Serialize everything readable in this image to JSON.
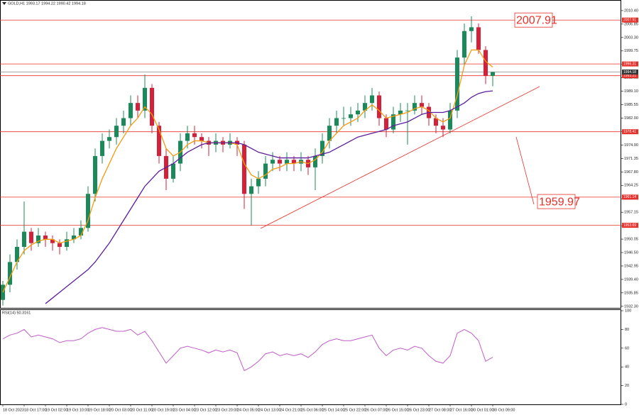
{
  "chart_data": {
    "type": "candlestick",
    "title": "GOLD,H1 1993.17 1994.22 1990.42 1994.18",
    "up_color": "#1b8a5a",
    "down_color": "#d6203a",
    "level_color": "#e8302a",
    "categories": [
      "18 Oct 2023",
      null,
      null,
      "18 Oct 17:00",
      null,
      null,
      "19 Oct 02:00",
      null,
      null,
      "19 Oct 10:00",
      null,
      null,
      "19 Oct 18:00",
      null,
      null,
      "20 Oct 03:00",
      null,
      null,
      "20 Oct 11:00",
      null,
      null,
      "20 Oct 19:00",
      null,
      null,
      "23 Oct 04:00",
      null,
      null,
      "23 Oct 12:00",
      null,
      null,
      "23 Oct 20:00",
      null,
      null,
      "24 Oct 05:00",
      null,
      null,
      "24 Oct 13:00",
      null,
      null,
      "24 Oct 21:00",
      null,
      null,
      "25 Oct 06:00",
      null,
      null,
      "25 Oct 14:00",
      null,
      null,
      "25 Oct 22:00",
      null,
      null,
      "26 Oct 07:00",
      null,
      null,
      "26 Oct 15:00",
      null,
      null,
      "26 Oct 23:00",
      null,
      null,
      "27 Oct 08:00",
      null,
      null,
      "27 Oct 16:00",
      null,
      null,
      "30 Oct 01:00",
      null,
      null,
      "30 Oct 09:00"
    ],
    "open": [
      1934,
      1938,
      1944,
      1948,
      1952,
      1949,
      1951,
      1950,
      1949,
      1948,
      1950,
      1951,
      1953,
      1962,
      1972,
      1976,
      1977,
      1980,
      1982,
      1986,
      1984,
      1990,
      1980,
      1972,
      1966,
      1970,
      1976,
      1978,
      1977,
      1976,
      1975,
      1976,
      1975,
      1976,
      1975,
      1962,
      1964,
      1966,
      1970,
      1971,
      1970,
      1971,
      1970,
      1971,
      1969,
      1972,
      1976,
      1980,
      1982,
      1982,
      1983,
      1984,
      1986,
      1988,
      1982,
      1979,
      1983,
      1984,
      1984,
      1986,
      1985,
      1982,
      1980,
      1979,
      1984,
      1998,
      2005,
      2006,
      2000,
      1993.17
    ],
    "high": [
      1939,
      1946,
      1950,
      1960,
      1953,
      1953,
      1952,
      1951,
      1950,
      1952,
      1953,
      1955,
      1964,
      1974,
      1978,
      1979,
      1982,
      1984,
      1988,
      1988,
      1993.5,
      1991,
      1981,
      1974,
      1972,
      1978,
      1980,
      1980,
      1978,
      1977,
      1978,
      1977,
      1978,
      1977,
      1976,
      1966,
      1968,
      1972,
      1973,
      1972,
      1973,
      1972,
      1973,
      1972,
      1974,
      1978,
      1982,
      1984,
      1985,
      1985,
      1986,
      1988,
      1990,
      1989,
      1983,
      1985,
      1986,
      1986,
      1988,
      1988,
      1986,
      1983,
      1982,
      1986,
      2000,
      2007,
      2008.9,
      2007,
      2001,
      1994.22
    ],
    "low": [
      1932.5,
      1936,
      1942,
      1946,
      1947,
      1948,
      1948,
      1947,
      1946,
      1947,
      1949,
      1950,
      1952,
      1960,
      1970,
      1974,
      1975,
      1978,
      1980,
      1982,
      1982,
      1978,
      1970,
      1963,
      1965,
      1968,
      1974,
      1975,
      1974,
      1972,
      1973,
      1973,
      1974,
      1972,
      1958,
      1953.69,
      1962,
      1964,
      1968,
      1968,
      1968,
      1968,
      1968,
      1967,
      1963,
      1970,
      1974,
      1978,
      1980,
      1980,
      1981,
      1982,
      1984,
      1980,
      1977,
      1978,
      1981,
      1975,
      1983,
      1983,
      1980,
      1978,
      1977,
      1978,
      1982,
      1996,
      2002,
      1999,
      1991,
      1990.42
    ],
    "close": [
      1938,
      1944,
      1948,
      1952,
      1949,
      1951,
      1950,
      1949,
      1948,
      1950,
      1951,
      1953,
      1962,
      1972,
      1976,
      1977,
      1980,
      1982,
      1986,
      1984,
      1990,
      1980,
      1972,
      1966,
      1970,
      1976,
      1978,
      1977,
      1976,
      1975,
      1976,
      1975,
      1976,
      1975,
      1962,
      1964,
      1966,
      1970,
      1971,
      1970,
      1971,
      1970,
      1971,
      1969,
      1972,
      1976,
      1980,
      1982,
      1982,
      1983,
      1984,
      1986,
      1988,
      1982,
      1979,
      1983,
      1984,
      1984,
      1986,
      1985,
      1982,
      1980,
      1979,
      1984,
      1998,
      2005,
      2006,
      2000,
      1993.17,
      1994.18
    ],
    "ma": [
      {
        "color": "#f39c12",
        "values": [
          1936,
          1940,
          1944,
          1947,
          1948.5,
          1949.5,
          1950,
          1950,
          1949,
          1949.5,
          1950,
          1951,
          1955,
          1961,
          1966,
          1970,
          1974,
          1977,
          1980,
          1982,
          1985,
          1983,
          1979,
          1974,
          1972,
          1973,
          1975,
          1976,
          1976,
          1975.5,
          1975.5,
          1975.5,
          1975.5,
          1975,
          1970,
          1967,
          1966,
          1967,
          1968.5,
          1969,
          1970,
          1970,
          1970.5,
          1970,
          1971,
          1973,
          1976,
          1978,
          1980,
          1981,
          1982,
          1984,
          1985.5,
          1984,
          1982,
          1982.5,
          1983,
          1983.5,
          1984.5,
          1985,
          1984,
          1982,
          1981,
          1982,
          1988,
          1996,
          2000,
          2000,
          1997,
          1995.5
        ]
      },
      {
        "color": "#5b1d9c",
        "values": [
          null,
          null,
          null,
          null,
          null,
          null,
          1933,
          1934.5,
          1936,
          1937.5,
          1939,
          1940.5,
          1942,
          1944,
          1946.5,
          1949,
          1952,
          1955,
          1958,
          1961,
          1964,
          1966,
          1968,
          1969,
          1970,
          1971.5,
          1973,
          1974,
          1975,
          1975.5,
          1975.5,
          1975.5,
          1975.5,
          1975.5,
          1975,
          1974,
          1973,
          1972.5,
          1972,
          1971.5,
          1971.5,
          1971.5,
          1971.5,
          1971.5,
          1972,
          1972.5,
          1973,
          1974,
          1975,
          1976,
          1977,
          1977.5,
          1978,
          1978.5,
          1979,
          1980,
          1980.5,
          1981,
          1982,
          1983,
          1983.5,
          1983.5,
          1983.5,
          1984,
          1985,
          1986,
          1987.5,
          1988.5,
          1989,
          1989.2
        ]
      }
    ],
    "levels": [
      {
        "value": 2007.91,
        "label": "2007.91"
      },
      {
        "value": 1996.31,
        "label": "1996.31"
      },
      {
        "value": 1993.21,
        "label": "1993.21"
      },
      {
        "value": 1978.41,
        "label": "1978.41"
      },
      {
        "value": 1961.14,
        "label": "1961.14"
      },
      {
        "value": 1953.69,
        "label": "1953.69"
      }
    ],
    "current_price": {
      "value": 1994.18,
      "label": "1994.18"
    },
    "annotations": [
      {
        "value": 2007.91,
        "label": "2007.91"
      },
      {
        "value": 1959.97,
        "label": "1959.97"
      }
    ],
    "ylim": [
      1931.7,
      2013.2
    ],
    "yticks": [
      {
        "value": 2010.4,
        "label": "2010.40"
      },
      {
        "value": 2006.85,
        "label": "2006.85"
      },
      {
        "value": 2003.3,
        "label": "2003.30"
      },
      {
        "value": 1999.75,
        "label": "1999.75"
      },
      {
        "value": 1996.2,
        "label": "1996.20"
      },
      {
        "value": 1992.65,
        "label": "1992.65"
      },
      {
        "value": 1989.1,
        "label": "1989.10"
      },
      {
        "value": 1985.55,
        "label": "1985.55"
      },
      {
        "value": 1982,
        "label": "1982.00"
      },
      {
        "value": 1978.45,
        "label": "1978.45"
      },
      {
        "value": 1974.9,
        "label": "1974.90"
      },
      {
        "value": 1971.35,
        "label": "1971.35"
      },
      {
        "value": 1967.8,
        "label": "1967.80"
      },
      {
        "value": 1964.25,
        "label": "1964.25"
      },
      {
        "value": 1960.7,
        "label": "1960.70"
      },
      {
        "value": 1957.15,
        "label": "1957.15"
      },
      {
        "value": 1953.6,
        "label": "1953.60"
      },
      {
        "value": 1950.05,
        "label": "1950.05"
      },
      {
        "value": 1946.5,
        "label": "1946.50"
      },
      {
        "value": 1942.95,
        "label": "1942.95"
      },
      {
        "value": 1939.4,
        "label": "1939.40"
      },
      {
        "value": 1935.85,
        "label": "1935.85"
      },
      {
        "value": 1932.3,
        "label": "1932.30"
      }
    ],
    "rsi": {
      "title": "RSI(14) 50.3161",
      "color": "#c05cc8",
      "ylim": [
        0,
        100
      ],
      "yticks": [
        0,
        20,
        40,
        60,
        80,
        100
      ],
      "values": [
        70,
        74,
        76,
        80,
        72,
        74,
        72,
        70,
        66,
        68,
        68,
        70,
        76,
        80,
        82,
        80,
        78,
        78,
        80,
        74,
        78,
        68,
        56,
        44,
        52,
        60,
        62,
        60,
        58,
        55,
        58,
        56,
        58,
        55,
        36,
        40,
        46,
        54,
        56,
        52,
        54,
        52,
        54,
        50,
        56,
        64,
        68,
        70,
        68,
        68,
        70,
        72,
        74,
        60,
        52,
        58,
        60,
        58,
        62,
        60,
        52,
        46,
        44,
        52,
        76,
        80,
        76,
        68,
        46,
        50.3161
      ]
    }
  }
}
